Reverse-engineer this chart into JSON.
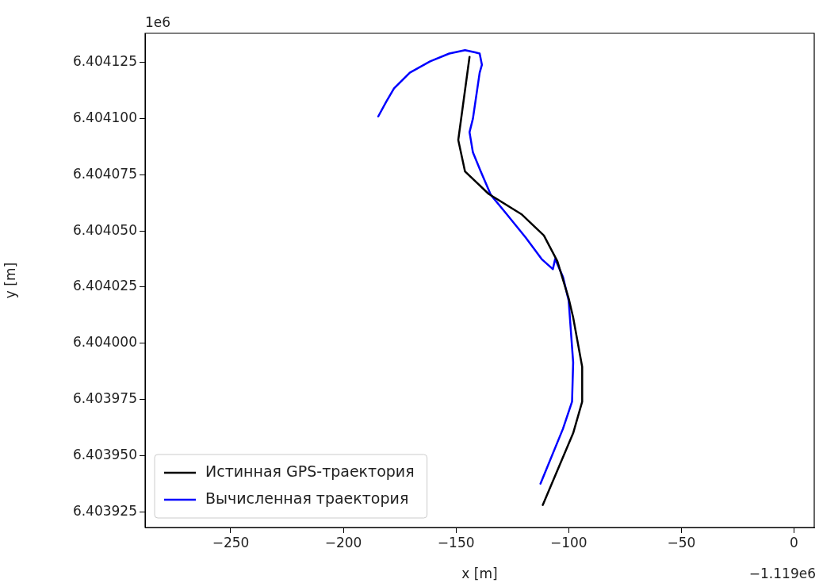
{
  "chart_data": {
    "type": "line",
    "xlabel": "x [m]",
    "ylabel": "y [m]",
    "annotations": [
      "1e6",
      "−1.119e6"
    ],
    "xlim": [
      -288,
      9
    ],
    "ylim": [
      6.403918,
      6.404138
    ],
    "xticks": [
      {
        "value": -250,
        "label": "−250"
      },
      {
        "value": -200,
        "label": "−200"
      },
      {
        "value": -150,
        "label": "−150"
      },
      {
        "value": -100,
        "label": "−100"
      },
      {
        "value": -50,
        "label": "−50"
      },
      0
    ],
    "yticks": [
      6.403925,
      {
        "value": 6.40395,
        "label": "6.403950"
      },
      6.403975,
      {
        "value": 6.404,
        "label": "6.404000"
      },
      6.404025,
      {
        "value": 6.40405,
        "label": "6.404050"
      },
      6.404075,
      {
        "value": 6.4041,
        "label": "6.404100"
      },
      6.404125
    ],
    "grid": false,
    "legend": "bottom left",
    "marker": "none",
    "line_style": "solid",
    "series": [
      {
        "name": "Истинная GPS-траектория",
        "color": "#000000",
        "x": [
          -111.5,
          -98,
          -94,
          -94,
          -98,
          -100,
          -105,
          -111,
          -121,
          -135.5,
          -146,
          -149,
          -144
        ],
        "values": [
          6.403928,
          6.40396,
          6.403974,
          6.4039895,
          6.4040115,
          6.40402,
          6.4040365,
          6.404048,
          6.4040575,
          6.4040665,
          6.4040765,
          6.4040905,
          6.4041275
        ]
      },
      {
        "name": "Вычисленная траектория",
        "color": "#0000ff",
        "x": [
          -184.5,
          -181,
          -177.5,
          -170.5,
          -161.5,
          -153,
          -146,
          -141.5,
          -139.5,
          -138.5,
          -139.5,
          -142.5,
          -144,
          -142.5,
          -139,
          -134.5,
          -127.5,
          -119,
          -112,
          -107,
          -106,
          -102.5,
          -100,
          -98,
          -98.5,
          -102.5,
          -112.5
        ],
        "values": [
          6.404101,
          6.4041075,
          6.4041135,
          6.4041205,
          6.4041255,
          6.404129,
          6.4041305,
          6.4041295,
          6.404129,
          6.404124,
          6.4041205,
          6.4041,
          6.404094,
          6.404085,
          6.4040765,
          6.404066,
          6.4040575,
          6.404047,
          6.4040375,
          6.404033,
          6.4040375,
          6.4040295,
          6.404019,
          6.4039915,
          6.403974,
          6.403962,
          6.4039375
        ]
      }
    ]
  }
}
